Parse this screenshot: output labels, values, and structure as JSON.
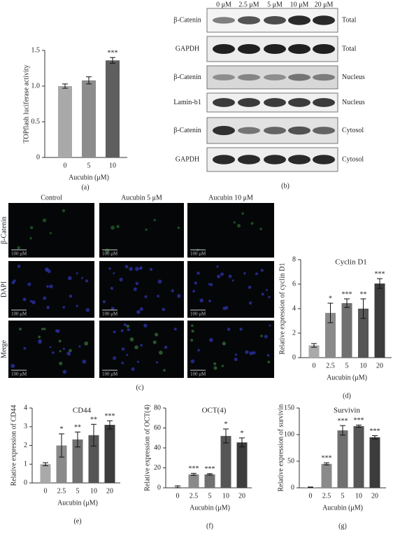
{
  "chart_data": [
    {
      "type": "bar",
      "panel_label": "(a)",
      "y_label": "TOPflash luciferase activity",
      "x_label": "Aucubin (μM)",
      "categories": [
        "0",
        "5",
        "10"
      ],
      "values": [
        1.0,
        1.08,
        1.36
      ],
      "errors": [
        0.03,
        0.05,
        0.04
      ],
      "annotations": [
        null,
        null,
        "***"
      ],
      "colors": [
        "#a9a9a9",
        "#8c8c8c",
        "#5e5e5e"
      ],
      "ylim": [
        0,
        1.5
      ],
      "yticks": [
        0,
        0.5,
        {
          "value": 1,
          "label": "1.0"
        },
        1.5
      ]
    },
    {
      "type": "bar",
      "panel_label": "(d)",
      "title": "Cyclin D1",
      "y_label": "Relative expression of cyclin D1",
      "x_label": "Aucubin (μM)",
      "categories": [
        "0",
        "2.5",
        "5",
        "10",
        "20"
      ],
      "values": [
        1.0,
        3.65,
        4.45,
        4.0,
        6.05
      ],
      "errors": [
        0.15,
        0.8,
        0.35,
        0.8,
        0.4
      ],
      "annotations": [
        null,
        "*",
        "***",
        "**",
        "***"
      ],
      "colors": [
        "#a9a9a9",
        "#8a8a8a",
        "#707070",
        "#565656",
        "#3c3c3c"
      ],
      "ylim": [
        0,
        8
      ],
      "yticks": [
        0,
        2,
        4,
        6,
        8
      ]
    },
    {
      "type": "bar",
      "panel_label": "(e)",
      "title": "CD44",
      "y_label": "Relative expression of CD44",
      "x_label": "Aucubin (μM)",
      "categories": [
        "0",
        "2.5",
        "5",
        "10",
        "20"
      ],
      "values": [
        1.0,
        2.0,
        2.32,
        2.55,
        3.1
      ],
      "errors": [
        0.08,
        0.62,
        0.4,
        0.58,
        0.22
      ],
      "annotations": [
        null,
        "*",
        "**",
        "**",
        "***"
      ],
      "colors": [
        "#a9a9a9",
        "#8a8a8a",
        "#707070",
        "#565656",
        "#3c3c3c"
      ],
      "ylim": [
        0,
        4
      ],
      "yticks": [
        0,
        1,
        2,
        3,
        4
      ]
    },
    {
      "type": "bar",
      "panel_label": "(f)",
      "title": "OCT(4)",
      "y_label": "Relative expression of OCT(4)",
      "x_label": "Aucubin (μM)",
      "categories": [
        "0",
        "2.5",
        "5",
        "10",
        "20"
      ],
      "values": [
        1,
        13.5,
        13.5,
        52,
        45.5
      ],
      "errors": [
        1,
        1,
        0.7,
        7,
        4.5
      ],
      "annotations": [
        null,
        "***",
        "***",
        "*",
        "*"
      ],
      "colors": [
        "#a9a9a9",
        "#8a8a8a",
        "#707070",
        "#565656",
        "#3c3c3c"
      ],
      "ylim": [
        0,
        80
      ],
      "yticks": [
        0,
        20,
        40,
        60,
        80
      ]
    },
    {
      "type": "bar",
      "panel_label": "(g)",
      "title": "Survivin",
      "y_label": "Relative expression of survivin",
      "x_label": "Aucubin (μM)",
      "categories": [
        "0",
        "2.5",
        "5",
        "10",
        "20"
      ],
      "values": [
        1,
        45,
        108,
        116,
        95
      ],
      "errors": [
        0.5,
        2,
        9,
        2,
        3
      ],
      "annotations": [
        null,
        "***",
        "***",
        "***",
        "***"
      ],
      "colors": [
        "#a9a9a9",
        "#8a8a8a",
        "#707070",
        "#565656",
        "#3c3c3c"
      ],
      "ylim": [
        0,
        150
      ],
      "yticks": [
        0,
        50,
        100,
        150
      ]
    }
  ],
  "blot": {
    "panel_label": "(b)",
    "columns": [
      "0 μM",
      "2.5 μM",
      "5 μM",
      "10 μM",
      "20 μM"
    ],
    "rows": [
      {
        "protein": "β-Catenin",
        "fraction": "Total"
      },
      {
        "protein": "GAPDH",
        "fraction": "Total"
      },
      {
        "protein": "β-Catenin",
        "fraction": "Nucleus"
      },
      {
        "protein": "Lamin-b1",
        "fraction": "Nucleus"
      },
      {
        "protein": "β-Catenin",
        "fraction": "Cytosol"
      },
      {
        "protein": "GAPDH",
        "fraction": "Cytosol"
      }
    ]
  },
  "microscopy": {
    "panel_label": "(c)",
    "columns": [
      "Control",
      "Aucubin 5 μM",
      "Aucubin 10 μM"
    ],
    "rows": [
      "β-Catenin",
      "DAPI",
      "Merge"
    ],
    "scale_bar": "100 μM"
  }
}
